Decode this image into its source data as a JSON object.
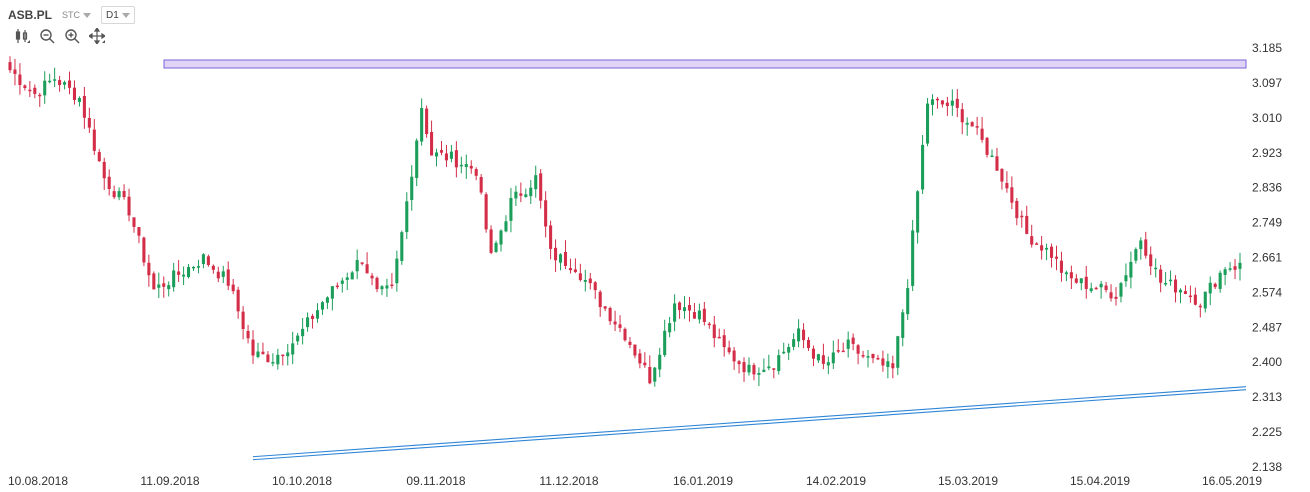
{
  "header": {
    "symbol": "ASB.PL",
    "data_source": "STC",
    "interval": "D1"
  },
  "toolbar": {
    "icons": [
      "candlestick-type-icon",
      "zoom-out-icon",
      "zoom-in-icon",
      "pan-move-icon"
    ]
  },
  "colors": {
    "up": "#1b9e5a",
    "down": "#d42d48",
    "zone": "#c9b8f2",
    "zone_border": "#7b63d6",
    "trend": "#2f86d6"
  },
  "chart_data": {
    "type": "candlestick",
    "x_ticks": [
      "10.08.2018",
      "11.09.2018",
      "10.10.2018",
      "09.11.2018",
      "11.12.2018",
      "16.01.2019",
      "14.02.2019",
      "15.03.2019",
      "15.04.2019",
      "16.05.2019"
    ],
    "y_ticks": [
      3.185,
      3.097,
      3.01,
      2.923,
      2.836,
      2.749,
      2.661,
      2.574,
      2.487,
      2.4,
      2.313,
      2.225,
      2.138
    ],
    "ylim": [
      2.138,
      3.185
    ],
    "price_path": [
      [
        0,
        3.13
      ],
      [
        5,
        3.07
      ],
      [
        9,
        3.11
      ],
      [
        14,
        3.06
      ],
      [
        19,
        2.86
      ],
      [
        24,
        2.78
      ],
      [
        29,
        2.58
      ],
      [
        34,
        2.62
      ],
      [
        39,
        2.66
      ],
      [
        44,
        2.6
      ],
      [
        49,
        2.42
      ],
      [
        53,
        2.41
      ],
      [
        58,
        2.46
      ],
      [
        63,
        2.55
      ],
      [
        68,
        2.62
      ],
      [
        71,
        2.66
      ],
      [
        74,
        2.57
      ],
      [
        77,
        2.58
      ],
      [
        79,
        2.72
      ],
      [
        83,
        3.04
      ],
      [
        85,
        2.92
      ],
      [
        89,
        2.91
      ],
      [
        94,
        2.88
      ],
      [
        97,
        2.66
      ],
      [
        101,
        2.8
      ],
      [
        106,
        2.86
      ],
      [
        109,
        2.67
      ],
      [
        114,
        2.64
      ],
      [
        119,
        2.55
      ],
      [
        124,
        2.47
      ],
      [
        129,
        2.36
      ],
      [
        134,
        2.55
      ],
      [
        139,
        2.52
      ],
      [
        144,
        2.43
      ],
      [
        149,
        2.38
      ],
      [
        154,
        2.4
      ],
      [
        159,
        2.47
      ],
      [
        164,
        2.39
      ],
      [
        169,
        2.44
      ],
      [
        174,
        2.4
      ],
      [
        178,
        2.38
      ],
      [
        181,
        2.6
      ],
      [
        185,
        3.05
      ],
      [
        190,
        3.04
      ],
      [
        194,
        2.99
      ],
      [
        199,
        2.89
      ],
      [
        205,
        2.72
      ],
      [
        210,
        2.67
      ],
      [
        213,
        2.61
      ],
      [
        218,
        2.59
      ],
      [
        223,
        2.57
      ],
      [
        228,
        2.71
      ],
      [
        232,
        2.6
      ],
      [
        237,
        2.58
      ],
      [
        240,
        2.55
      ],
      [
        245,
        2.64
      ]
    ],
    "resistance_zone": {
      "low": 3.135,
      "high": 3.155,
      "label": ""
    },
    "trendline": {
      "x0_index": 49,
      "y0": 2.16,
      "x1_index": 248,
      "y1": 2.335
    },
    "n_bars": 249,
    "grid": false,
    "legend": "none",
    "xlabel": "",
    "ylabel": ""
  }
}
